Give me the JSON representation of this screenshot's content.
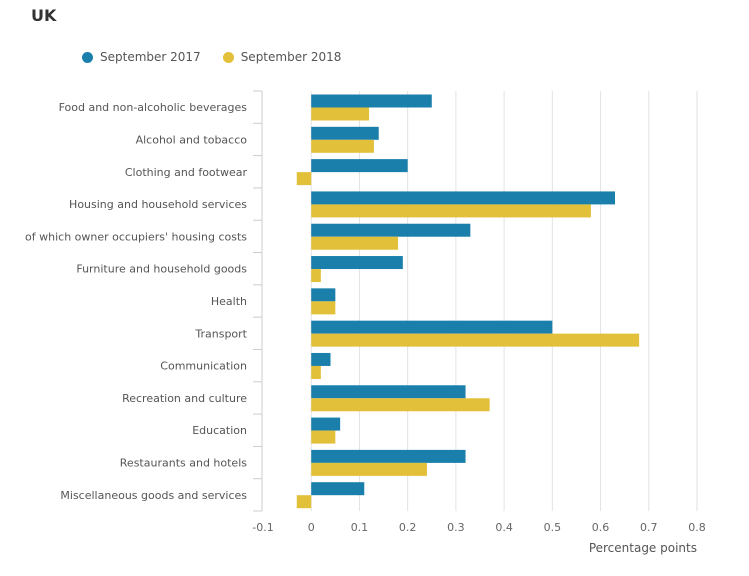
{
  "title": "UK",
  "legend": [
    {
      "label": "September 2017",
      "color": "#1b7fab"
    },
    {
      "label": "September 2018",
      "color": "#e3c03a"
    }
  ],
  "chart_data": {
    "type": "bar",
    "orientation": "horizontal",
    "title": "UK",
    "xlabel": "Percentage points",
    "ylabel": "",
    "xlim": [
      -0.1,
      0.8
    ],
    "xticks": [
      "-0.1",
      "0",
      "0.1",
      "0.2",
      "0.3",
      "0.4",
      "0.5",
      "0.6",
      "0.7",
      "0.8"
    ],
    "grid": true,
    "legend_position": "top-left",
    "categories": [
      "Food and non-alcoholic beverages",
      "Alcohol and tobacco",
      "Clothing and footwear",
      "Housing and household services",
      "of which owner occupiers' housing costs",
      "Furniture and household goods",
      "Health",
      "Transport",
      "Communication",
      "Recreation and culture",
      "Education",
      "Restaurants and hotels",
      "Miscellaneous goods and services"
    ],
    "series": [
      {
        "name": "September 2017",
        "color": "#1b7fab",
        "values": [
          0.25,
          0.14,
          0.2,
          0.63,
          0.33,
          0.19,
          0.05,
          0.5,
          0.04,
          0.32,
          0.06,
          0.32,
          0.11
        ]
      },
      {
        "name": "September 2018",
        "color": "#e3c03a",
        "values": [
          0.12,
          0.13,
          -0.03,
          0.58,
          0.18,
          0.02,
          0.05,
          0.68,
          0.02,
          0.37,
          0.05,
          0.24,
          -0.03
        ]
      }
    ]
  }
}
